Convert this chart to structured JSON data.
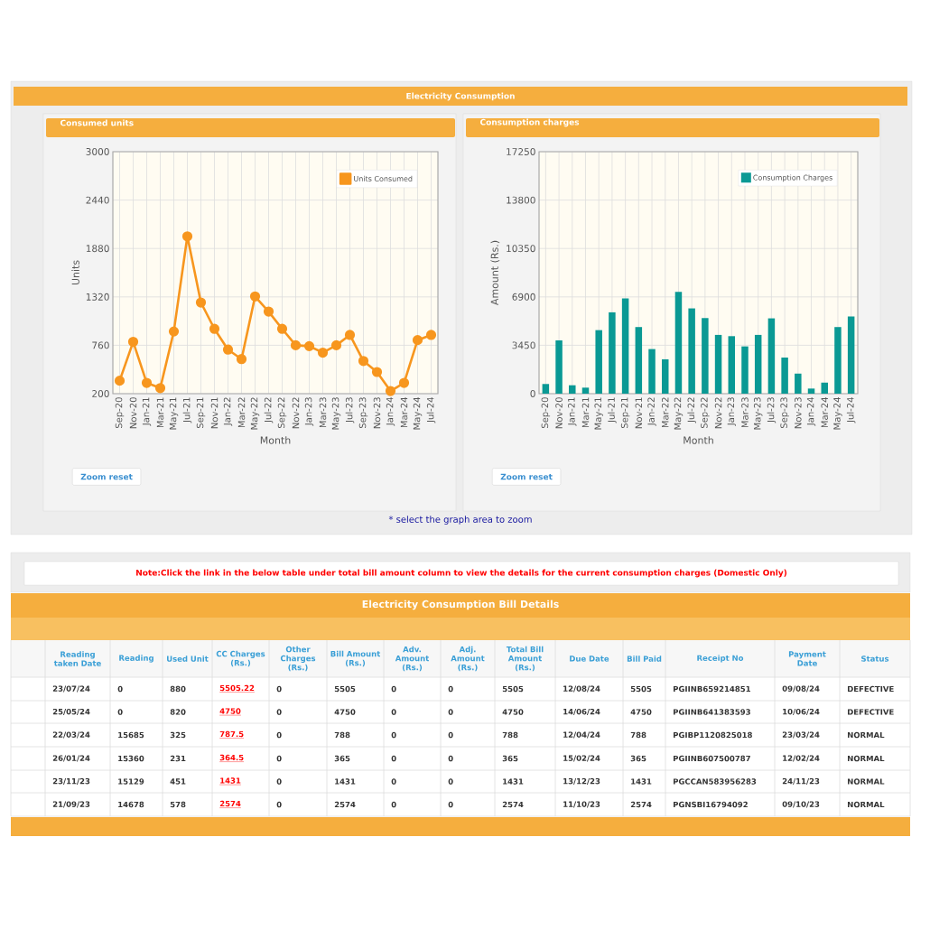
{
  "chart_data": [
    {
      "type": "line",
      "title": "Consumed units",
      "xlabel": "Month",
      "ylabel": "Units",
      "categories": [
        "Sep-20",
        "Nov-20",
        "Jan-21",
        "Mar-21",
        "May-21",
        "Jul-21",
        "Sep-21",
        "Nov-21",
        "Jan-22",
        "Mar-22",
        "May-22",
        "Jul-22",
        "Sep-22",
        "Nov-22",
        "Jan-23",
        "Mar-23",
        "May-23",
        "Jul-23",
        "Sep-23",
        "Nov-23",
        "Jan-24",
        "Mar-24",
        "May-24",
        "Jul-24"
      ],
      "series": [
        {
          "name": "Units Consumed",
          "color": "#f7961e",
          "values": [
            350,
            800,
            325,
            265,
            920,
            2020,
            1255,
            950,
            710,
            600,
            1325,
            1150,
            950,
            760,
            750,
            675,
            760,
            880,
            578,
            451,
            231,
            325,
            820,
            880
          ]
        }
      ],
      "ylim": [
        200,
        3000
      ],
      "yticks": [
        200,
        760,
        1320,
        1880,
        2440,
        3000
      ],
      "grid": true,
      "legend": "top right",
      "marker": "circle",
      "annotations": [
        "Electricity Consumption",
        "Zoom reset"
      ]
    },
    {
      "type": "bar",
      "title": "Consumption charges",
      "xlabel": "Month",
      "ylabel": "Amount (Rs.)",
      "categories": [
        "Sep-20",
        "Nov-20",
        "Jan-21",
        "Mar-21",
        "May-21",
        "Jul-21",
        "Sep-21",
        "Nov-21",
        "Jan-22",
        "Mar-22",
        "May-22",
        "Jul-22",
        "Sep-22",
        "Nov-22",
        "Jan-23",
        "Mar-23",
        "May-23",
        "Jul-23",
        "Sep-23",
        "Nov-23",
        "Jan-24",
        "Mar-24",
        "May-24",
        "Jul-24"
      ],
      "series": [
        {
          "name": "Consumption Charges",
          "color": "#0a9994",
          "values": [
            690,
            3800,
            600,
            430,
            4530,
            5800,
            6790,
            4750,
            3180,
            2450,
            7260,
            6080,
            5390,
            4190,
            4100,
            3370,
            4190,
            5370,
            2574,
            1431,
            365,
            788,
            4750,
            5505
          ]
        }
      ],
      "ylim": [
        0,
        17250
      ],
      "yticks": [
        0,
        3450,
        6900,
        10350,
        13800,
        17250
      ],
      "grid": true,
      "legend": "top right",
      "annotations": [
        "Zoom reset",
        "* select the graph area to zoom"
      ]
    },
    {
      "type": "other",
      "title": "Electricity Consumption Bill Details",
      "subtitle": "Note:Click the link in the below table under total bill amount column to view the details for the current consumption charges (Domestic Only)",
      "categories": [
        "Reading taken Date",
        "Reading",
        "Used Unit",
        "CC Charges (Rs.)",
        "Other Charges (Rs.)",
        "Bill Amount (Rs.)",
        "Adv. Amount (Rs.)",
        "Adj. Amount (Rs.)",
        "Total Bill Amount (Rs.)",
        "Due Date",
        "Bill Paid",
        "Receipt No",
        "Payment Date",
        "Status"
      ],
      "annotations": [
        "23/07/24",
        "0",
        "880",
        "5505.22",
        "0",
        "5505",
        "0",
        "0",
        "5505",
        "12/08/24",
        "5505",
        "PGIINB659214851",
        "09/08/24",
        "DEFECTIVE",
        "25/05/24",
        "0",
        "820",
        "4750",
        "0",
        "4750",
        "0",
        "0",
        "4750",
        "14/06/24",
        "4750",
        "PGIINB641383593",
        "10/06/24",
        "DEFECTIVE",
        "22/03/24",
        "15685",
        "325",
        "787.5",
        "0",
        "788",
        "0",
        "0",
        "788",
        "12/04/24",
        "788",
        "PGIBP1120825018",
        "23/03/24",
        "NORMAL",
        "26/01/24",
        "15360",
        "231",
        "364.5",
        "0",
        "365",
        "0",
        "0",
        "365",
        "15/02/24",
        "365",
        "PGIINB607500787",
        "12/02/24",
        "NORMAL",
        "23/11/23",
        "15129",
        "451",
        "1431",
        "0",
        "1431",
        "0",
        "0",
        "1431",
        "13/12/23",
        "1431",
        "PGCCAN583956283",
        "24/11/23",
        "NORMAL",
        "21/09/23",
        "14678",
        "578",
        "2574",
        "0",
        "2574",
        "0",
        "0",
        "2574",
        "11/10/23",
        "2574",
        "PGNSBI16794092",
        "09/10/23",
        "NORMAL"
      ]
    }
  ]
}
